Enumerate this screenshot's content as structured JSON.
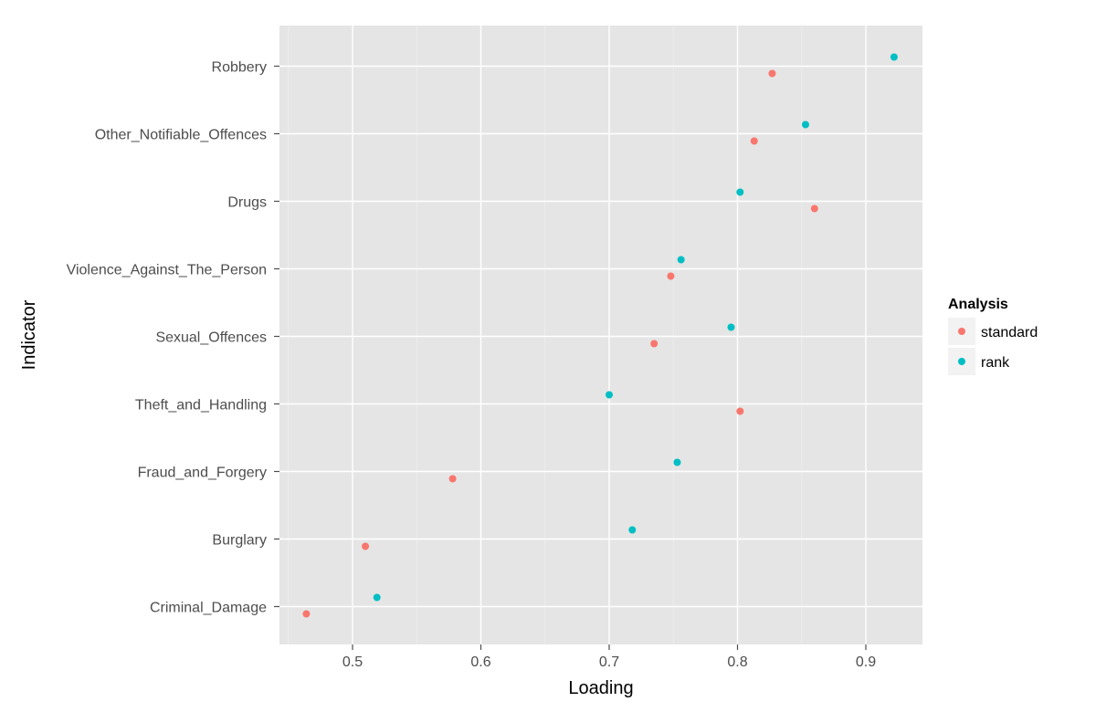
{
  "chart_data": {
    "type": "scatter",
    "xlabel": "Loading",
    "ylabel": "Indicator",
    "xlim": [
      0.445,
      0.945
    ],
    "x_ticks": [
      0.5,
      0.6,
      0.7,
      0.8,
      0.9
    ],
    "x_tick_labels": [
      "0.5",
      "0.6",
      "0.7",
      "0.8",
      "0.9"
    ],
    "categories": [
      "Robbery",
      "Other_Notifiable_Offences",
      "Drugs",
      "Violence_Against_The_Person",
      "Sexual_Offences",
      "Theft_and_Handling",
      "Fraud_and_Forgery",
      "Burglary",
      "Criminal_Damage"
    ],
    "grid": true,
    "legend_title": "Analysis",
    "legend_position": "right",
    "series": [
      {
        "name": "standard",
        "color": "#F8766D",
        "values": [
          0.827,
          0.813,
          0.86,
          0.748,
          0.735,
          0.802,
          0.578,
          0.51,
          0.464
        ]
      },
      {
        "name": "rank",
        "color": "#00BFC4",
        "values": [
          0.922,
          0.853,
          0.802,
          0.756,
          0.795,
          0.7,
          0.753,
          0.718,
          0.519
        ]
      }
    ]
  }
}
